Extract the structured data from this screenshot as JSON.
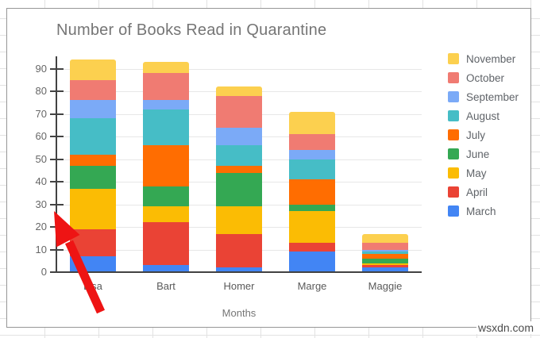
{
  "watermark": "wsxdn.com",
  "annotation": {
    "name": "red-arrow",
    "color": "#ee1414",
    "points_at": "y-axis near value 30"
  },
  "chart_data": {
    "type": "bar",
    "stacked": true,
    "title": "Number of Books Read in Quarantine",
    "xlabel": "Months",
    "ylabel": "",
    "ylim": [
      0,
      95
    ],
    "y_ticks": [
      0,
      10,
      20,
      30,
      40,
      50,
      60,
      70,
      80,
      90
    ],
    "grid": true,
    "legend_position": "right",
    "legend_order": "reversed",
    "categories": [
      "Lisa",
      "Bart",
      "Homer",
      "Marge",
      "Maggie"
    ],
    "series": [
      {
        "name": "March",
        "color": "#4285F4",
        "values": [
          7,
          3,
          2,
          9,
          2
        ]
      },
      {
        "name": "April",
        "color": "#EA4335",
        "values": [
          12,
          19,
          15,
          4,
          1
        ]
      },
      {
        "name": "May",
        "color": "#FBBC04",
        "values": [
          18,
          7,
          12,
          14,
          1
        ]
      },
      {
        "name": "June",
        "color": "#34A853",
        "values": [
          10,
          9,
          15,
          3,
          2
        ]
      },
      {
        "name": "July",
        "color": "#FF6D01",
        "values": [
          5,
          18,
          3,
          11,
          2
        ]
      },
      {
        "name": "August",
        "color": "#46BDC6",
        "values": [
          16,
          16,
          9,
          9,
          1
        ]
      },
      {
        "name": "September",
        "color": "#7BAAF7",
        "values": [
          8,
          4,
          8,
          4,
          1
        ]
      },
      {
        "name": "October",
        "color": "#F07B72",
        "values": [
          9,
          12,
          14,
          7,
          3
        ]
      },
      {
        "name": "November",
        "color": "#FCD04F",
        "values": [
          9,
          5,
          4,
          10,
          4
        ]
      }
    ],
    "totals": [
      94,
      93,
      82,
      71,
      17
    ]
  }
}
